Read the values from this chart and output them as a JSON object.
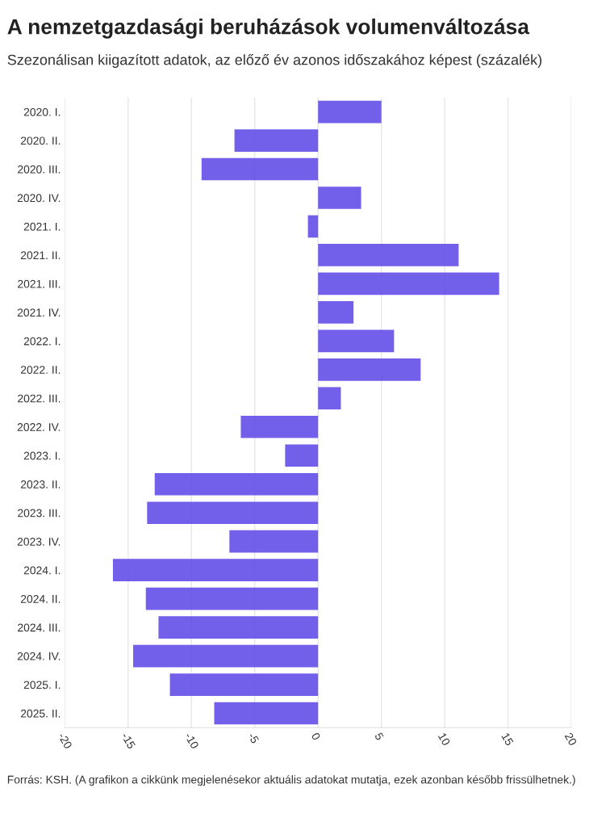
{
  "chart_data": {
    "type": "bar",
    "orientation": "horizontal",
    "title": "A nemzetgazdasági beruházások volumenváltozása",
    "subtitle": "Szezonálisan kiigazított adatok, az előző év azonos időszakához képest (százalék)",
    "annotations": [
      "Forrás: KSH. (A grafikon a cikkünk megjelenésekor aktuális adatokat mutatja, ezek azonban később frissülhetnek.)"
    ],
    "categories": [
      "2020. I.",
      "2020. II.",
      "2020. III.",
      "2020. IV.",
      "2021. I.",
      "2021. II.",
      "2021. III.",
      "2021. IV.",
      "2022. I.",
      "2022. II.",
      "2022. III.",
      "2022. IV.",
      "2023. I.",
      "2023. II.",
      "2023. III.",
      "2023. IV.",
      "2024. I.",
      "2024. II.",
      "2024. III.",
      "2024. IV.",
      "2025. I.",
      "2025. II."
    ],
    "values": [
      5.0,
      -6.6,
      -9.2,
      3.4,
      -0.8,
      11.1,
      14.3,
      2.8,
      6.0,
      8.1,
      1.8,
      -6.1,
      -2.6,
      -12.9,
      -13.5,
      -7.0,
      -16.2,
      -13.6,
      -12.6,
      -14.6,
      -11.7,
      -8.2
    ],
    "color": "#634ee8",
    "xlim": [
      -20,
      20
    ],
    "xticks": [
      -20,
      -15,
      -10,
      -5,
      0,
      5,
      10,
      15,
      20
    ],
    "grid": "x",
    "legend": false
  }
}
